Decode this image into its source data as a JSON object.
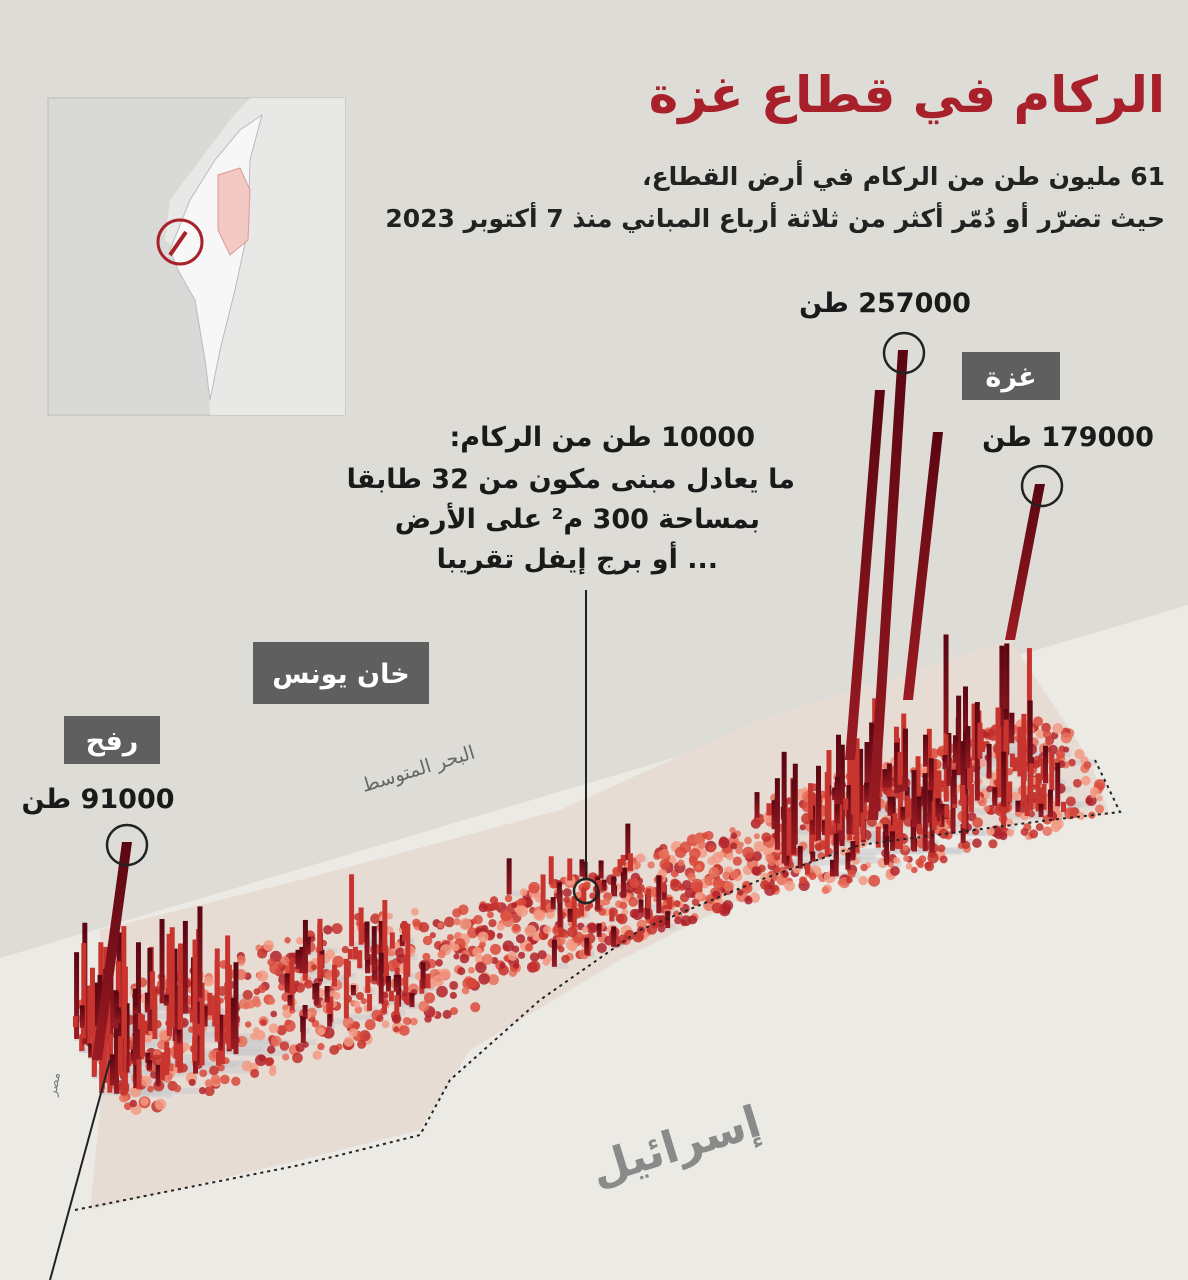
{
  "header": {
    "title": "الركام في قطاع غزة",
    "subtitle": [
      "61 مليون طن من الركام في أرض القطاع،",
      "حيث تضرّر أو دُمّر أكثر من ثلاثة أرباع المباني منذ 7 أكتوبر 2023"
    ]
  },
  "callouts": [
    {
      "label": "257000 طن"
    },
    {
      "label": "179000 طن"
    },
    {
      "label": "91000 طن"
    }
  ],
  "cities": [
    "غزة",
    "خان يونس",
    "رفح"
  ],
  "note": [
    "10000 طن من الركام:",
    "ما يعادل مبنى مكون من 32 طابقا",
    "بمساحة 300 م² على الأرض",
    "... أو برج إيفل تقريبا"
  ],
  "map_labels": {
    "sea": "البحر المتوسط",
    "israel": "إسرائيل",
    "egypt": "مصر"
  }
}
